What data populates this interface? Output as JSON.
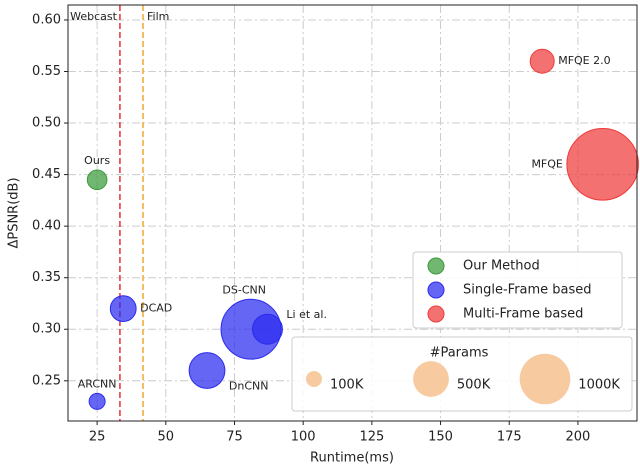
{
  "chart_data": {
    "type": "bubble",
    "xlabel": "Runtime(ms)",
    "ylabel": "ΔPSNR(dB)",
    "xlim": [
      14.4,
      221.5
    ],
    "ylim": [
      0.211,
      0.6145
    ],
    "xticks": [
      25,
      50,
      75,
      100,
      125,
      150,
      175,
      200
    ],
    "yticks": [
      0.25,
      {
        "value": 0.3,
        "label": "0.30"
      },
      0.35,
      {
        "value": 0.4,
        "label": "0.40"
      },
      0.45,
      {
        "value": 0.5,
        "label": "0.50"
      },
      0.55,
      {
        "value": 0.6,
        "label": "0.60"
      }
    ],
    "grid": true,
    "vlines": [
      {
        "label": "Webcast",
        "x": 33.3,
        "color": "#e8303a"
      },
      {
        "label": "Film",
        "x": 41.7,
        "color": "#f0a830"
      }
    ],
    "series": [
      {
        "name": "Our Method",
        "color": "#3a9a3a",
        "x": [
          25
        ],
        "values": [
          0.445
        ],
        "sizes": [
          150
        ],
        "labels": [
          "Ours"
        ]
      },
      {
        "name": "Single-Frame based",
        "color": "#2b2bf0",
        "x": [
          25,
          34.5,
          65,
          81,
          87
        ],
        "values": [
          0.23,
          0.32,
          0.26,
          0.3,
          0.3
        ],
        "sizes": [
          100,
          260,
          500,
          1400,
          350
        ],
        "labels": [
          "ARCNN",
          "DCAD",
          "DnCNN",
          "DS-CNN",
          "Li et al."
        ]
      },
      {
        "name": "Multi-Frame based",
        "color": "#f03a3a",
        "x": [
          187,
          209
        ],
        "values": [
          0.56,
          0.46
        ],
        "sizes": [
          225,
          2000
        ],
        "labels": [
          "MFQE 2.0",
          "MFQE"
        ]
      }
    ],
    "legend": "lower right",
    "size_legend": {
      "title": "#Params",
      "sizes": [
        {
          "value": 100,
          "label": "100K"
        },
        {
          "value": 500,
          "label": "500K"
        },
        {
          "value": 1000,
          "label": "1000K"
        }
      ],
      "color": "#f4b880"
    }
  }
}
